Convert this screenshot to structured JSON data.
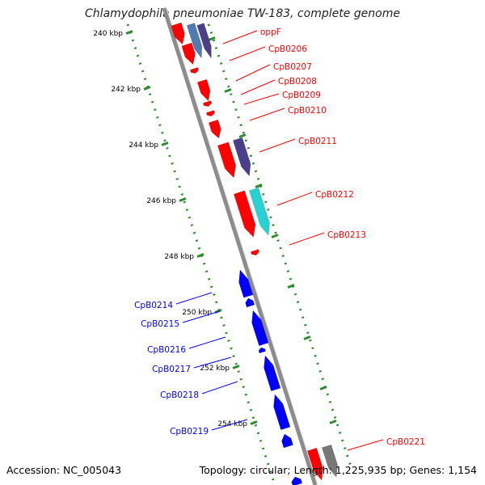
{
  "title": "Chlamydophila pneumoniae TW-183, complete genome",
  "footer": {
    "accession": "Accession: NC_005043",
    "summary": "Topology: circular; Length: 1,225,935 bp; Genes: 1,154"
  },
  "colors": {
    "forward_gene": "#ff0000",
    "reverse_gene": "#0000ff",
    "dark_purple": "#4b3f8c",
    "steel_blue": "#4f7bb0",
    "cyan": "#2ad1d1",
    "gray_feature": "#777777",
    "scale_ticks": "#2e8b2e",
    "backbone": "#8c8c8c"
  },
  "scale_labels": [
    "240 kbp",
    "242 kbp",
    "244 kbp",
    "246 kbp",
    "248 kbp",
    "250 kbp",
    "252 kbp",
    "254 kbp"
  ],
  "forward_labels": [
    "oppF",
    "CpB0206",
    "CpB0207",
    "CpB0208",
    "CpB0209",
    "CpB0210",
    "CpB0211",
    "CpB0212",
    "CpB0213",
    "CpB0221"
  ],
  "reverse_labels": [
    "CpB0214",
    "CpB0215",
    "CpB0216",
    "CpB0217",
    "CpB0218",
    "CpB0219"
  ]
}
